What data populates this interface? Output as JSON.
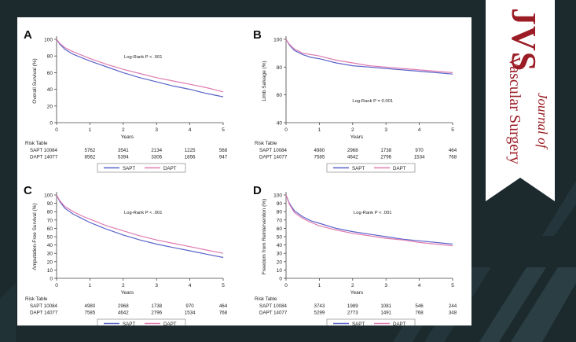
{
  "colors": {
    "sapt": "#5a63c9",
    "dapt": "#e07bb0"
  },
  "journal": {
    "letters": "JVS",
    "journal_of": "Journal of",
    "name": "Vascular Surgery"
  },
  "labels": {
    "risk_table": "Risk Table",
    "years": "Years"
  },
  "chart_data": [
    {
      "id": "A",
      "type": "line",
      "ylabel": "Overall Survival (%)",
      "xlabel": "Years",
      "ylim": [
        0,
        100
      ],
      "yticks": [
        0,
        20,
        40,
        60,
        80,
        100
      ],
      "xticks": [
        0,
        1,
        2,
        3,
        4,
        5
      ],
      "logrank": "Log-Rank P < .001",
      "series": [
        {
          "name": "SAPT",
          "x": [
            0,
            0.1,
            0.25,
            0.5,
            0.75,
            1,
            1.5,
            2,
            2.5,
            3,
            3.5,
            4,
            4.5,
            5
          ],
          "y": [
            100,
            94,
            88,
            82,
            78,
            74,
            67,
            60,
            54,
            49,
            44,
            40,
            35,
            31
          ]
        },
        {
          "name": "DAPT",
          "x": [
            0,
            0.1,
            0.25,
            0.5,
            0.75,
            1,
            1.5,
            2,
            2.5,
            3,
            3.5,
            4,
            4.5,
            5
          ],
          "y": [
            100,
            95,
            90,
            85,
            81,
            77,
            70,
            64,
            59,
            54,
            50,
            46,
            42,
            37
          ]
        }
      ],
      "risk_table": [
        {
          "label": "SAPT 10084",
          "values": [
            "5762",
            "3541",
            "2134",
            "1225",
            "568"
          ]
        },
        {
          "label": "DAPT 14077",
          "values": [
            "8562",
            "5394",
            "3306",
            "1856",
            "947"
          ]
        }
      ],
      "legend": [
        "SAPT",
        "DAPT"
      ]
    },
    {
      "id": "B",
      "type": "line",
      "ylabel": "Limb Salvage (%)",
      "xlabel": "Years",
      "ylim": [
        40,
        100
      ],
      "yticks": [
        40,
        60,
        80,
        100
      ],
      "xticks": [
        0,
        1,
        2,
        3,
        4,
        5
      ],
      "logrank": "Log-Rank P = 0.001",
      "series": [
        {
          "name": "SAPT",
          "x": [
            0,
            0.1,
            0.25,
            0.5,
            0.75,
            1,
            1.5,
            2,
            2.5,
            3,
            3.5,
            4,
            4.5,
            5
          ],
          "y": [
            100,
            96,
            92,
            89,
            87,
            86,
            83,
            81,
            80,
            79,
            78,
            77,
            76,
            75
          ]
        },
        {
          "name": "DAPT",
          "x": [
            0,
            0.1,
            0.25,
            0.5,
            0.75,
            1,
            1.5,
            2,
            2.5,
            3,
            3.5,
            4,
            4.5,
            5
          ],
          "y": [
            100,
            96.5,
            93,
            90,
            89,
            88,
            85,
            83,
            81,
            80,
            79,
            78,
            77,
            76
          ]
        }
      ],
      "risk_table": [
        {
          "label": "SAPT 10084",
          "values": [
            "4980",
            "2968",
            "1738",
            "970",
            "464"
          ]
        },
        {
          "label": "DAPT 14077",
          "values": [
            "7585",
            "4642",
            "2796",
            "1534",
            "768"
          ]
        }
      ],
      "legend": [
        "SAPT",
        "DAPT"
      ]
    },
    {
      "id": "C",
      "type": "line",
      "ylabel": "Amputation-Free Survival (%)",
      "xlabel": "Years",
      "ylim": [
        0,
        100
      ],
      "yticks": [
        0,
        10,
        20,
        30,
        40,
        50,
        60,
        70,
        80,
        90,
        100
      ],
      "xticks": [
        0,
        1,
        2,
        3,
        4,
        5
      ],
      "logrank": "Log-Rank P < .001",
      "series": [
        {
          "name": "SAPT",
          "x": [
            0,
            0.1,
            0.25,
            0.5,
            0.75,
            1,
            1.5,
            2,
            2.5,
            3,
            3.5,
            4,
            4.5,
            5
          ],
          "y": [
            100,
            92,
            84,
            77,
            72,
            67,
            59,
            52,
            46,
            41,
            37,
            33,
            29,
            25
          ]
        },
        {
          "name": "DAPT",
          "x": [
            0,
            0.1,
            0.25,
            0.5,
            0.75,
            1,
            1.5,
            2,
            2.5,
            3,
            3.5,
            4,
            4.5,
            5
          ],
          "y": [
            100,
            93,
            86,
            80,
            75,
            71,
            63,
            57,
            51,
            46,
            42,
            38,
            34,
            30
          ]
        }
      ],
      "risk_table": [
        {
          "label": "SAPT 10084",
          "values": [
            "4980",
            "2968",
            "1738",
            "970",
            "464"
          ]
        },
        {
          "label": "DAPT 14077",
          "values": [
            "7585",
            "4642",
            "2796",
            "1534",
            "768"
          ]
        }
      ],
      "legend": [
        "SAPT",
        "DAPT"
      ]
    },
    {
      "id": "D",
      "type": "line",
      "ylabel": "Freedom from Reintervention (%)",
      "xlabel": "Years",
      "ylim": [
        0,
        100
      ],
      "yticks": [
        0,
        10,
        20,
        30,
        40,
        50,
        60,
        70,
        80,
        90,
        100
      ],
      "xticks": [
        0,
        1,
        2,
        3,
        4,
        5
      ],
      "logrank": "Log-Rank P < .001",
      "series": [
        {
          "name": "SAPT",
          "x": [
            0,
            0.1,
            0.25,
            0.5,
            0.75,
            1,
            1.5,
            2,
            2.5,
            3,
            3.5,
            4,
            4.5,
            5
          ],
          "y": [
            100,
            90,
            81,
            74,
            69,
            66,
            60,
            56,
            53,
            50,
            47,
            45,
            43,
            41
          ]
        },
        {
          "name": "DAPT",
          "x": [
            0,
            0.1,
            0.25,
            0.5,
            0.75,
            1,
            1.5,
            2,
            2.5,
            3,
            3.5,
            4,
            4.5,
            5
          ],
          "y": [
            100,
            89,
            79,
            72,
            67,
            63,
            58,
            54,
            51,
            48,
            46,
            43,
            41,
            39
          ]
        }
      ],
      "risk_table": [
        {
          "label": "SAPT 10084",
          "values": [
            "3743",
            "1989",
            "1081",
            "546",
            "244"
          ]
        },
        {
          "label": "DAPT 14077",
          "values": [
            "5299",
            "2773",
            "1491",
            "768",
            "348"
          ]
        }
      ],
      "legend": [
        "SAPT",
        "DAPT"
      ]
    }
  ]
}
